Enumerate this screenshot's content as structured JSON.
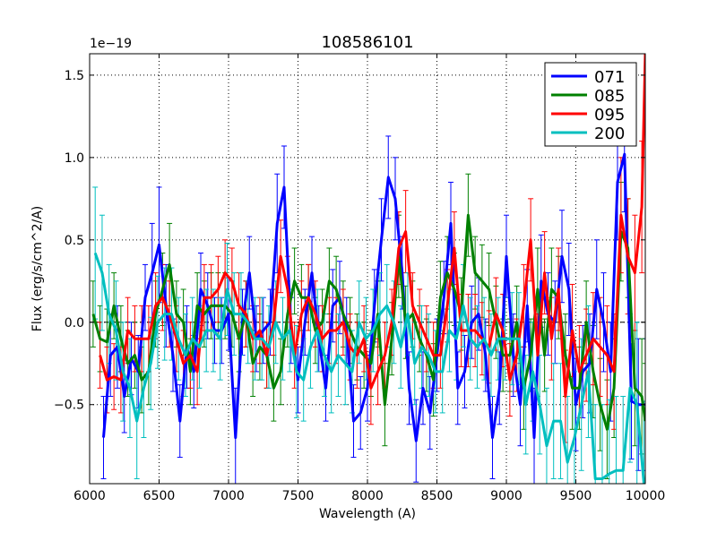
{
  "chart_data": {
    "type": "line",
    "title": "108586101",
    "xlabel": "Wavelength (A)",
    "ylabel": "Flux (erg/s/cm^2/A)",
    "offset_label": "1e−19",
    "xlim": [
      6000,
      10000
    ],
    "ylim": [
      -0.98,
      1.63
    ],
    "xticks": [
      6000,
      6500,
      7000,
      7500,
      8000,
      8500,
      9000,
      9500,
      10000
    ],
    "yticks": [
      -0.5,
      0.0,
      0.5,
      1.0,
      1.5
    ],
    "xtick_labels": [
      "6000",
      "6500",
      "7000",
      "7500",
      "8000",
      "8500",
      "9000",
      "9500",
      "10000"
    ],
    "ytick_labels": [
      "−0.5",
      "0.0",
      "0.5",
      "1.0",
      "1.5"
    ],
    "grid": true,
    "legend_position": "top-right",
    "zero_line": true,
    "series": [
      {
        "name": "071",
        "color": "#0000ff",
        "x": [
          6100,
          6150,
          6200,
          6250,
          6300,
          6350,
          6400,
          6450,
          6500,
          6550,
          6600,
          6650,
          6700,
          6750,
          6800,
          6850,
          6900,
          6950,
          7000,
          7050,
          7100,
          7150,
          7200,
          7250,
          7300,
          7350,
          7400,
          7450,
          7500,
          7550,
          7600,
          7650,
          7700,
          7750,
          7800,
          7850,
          7900,
          7950,
          8000,
          8050,
          8100,
          8150,
          8200,
          8250,
          8300,
          8350,
          8400,
          8450,
          8500,
          8550,
          8600,
          8650,
          8700,
          8750,
          8800,
          8850,
          8900,
          8950,
          9000,
          9050,
          9100,
          9150,
          9200,
          9250,
          9300,
          9350,
          9400,
          9450,
          9500,
          9550,
          9600,
          9650,
          9700,
          9750,
          9800,
          9850,
          9900,
          9950,
          10000
        ],
        "y": [
          -0.7,
          -0.2,
          -0.15,
          -0.45,
          -0.22,
          -0.3,
          0.15,
          0.3,
          0.47,
          0.1,
          -0.2,
          -0.6,
          -0.15,
          -0.3,
          0.2,
          0.1,
          -0.05,
          -0.05,
          0.05,
          -0.7,
          0.0,
          0.3,
          -0.1,
          -0.05,
          0.0,
          0.6,
          0.82,
          -0.05,
          -0.35,
          0.0,
          0.3,
          -0.1,
          -0.4,
          0.1,
          0.15,
          -0.05,
          -0.6,
          -0.55,
          -0.4,
          0.1,
          0.5,
          0.88,
          0.75,
          0.3,
          -0.4,
          -0.72,
          -0.4,
          -0.55,
          -0.2,
          0.15,
          0.6,
          -0.4,
          -0.3,
          0.0,
          0.05,
          -0.2,
          -0.7,
          -0.4,
          0.4,
          -0.2,
          -0.5,
          0.1,
          -0.7,
          0.25,
          0.05,
          0.0,
          0.4,
          0.2,
          -0.5,
          -0.3,
          -0.25,
          0.2,
          0.0,
          -0.3,
          0.85,
          1.02,
          -0.48,
          -0.5,
          -0.5
        ],
        "err": [
          0.25,
          0.25,
          0.25,
          0.22,
          0.22,
          0.22,
          0.2,
          0.3,
          0.35,
          0.25,
          0.22,
          0.22,
          0.25,
          0.22,
          0.22,
          0.2,
          0.2,
          0.2,
          0.22,
          0.3,
          0.2,
          0.22,
          0.2,
          0.2,
          0.2,
          0.3,
          0.25,
          0.2,
          0.2,
          0.2,
          0.22,
          0.2,
          0.2,
          0.22,
          0.22,
          0.2,
          0.22,
          0.22,
          0.2,
          0.22,
          0.25,
          0.25,
          0.25,
          0.22,
          0.22,
          0.25,
          0.22,
          0.22,
          0.22,
          0.22,
          0.25,
          0.22,
          0.22,
          0.22,
          0.22,
          0.22,
          0.25,
          0.22,
          0.25,
          0.25,
          0.25,
          0.22,
          0.3,
          0.28,
          0.25,
          0.25,
          0.28,
          0.28,
          0.28,
          0.28,
          0.3,
          0.3,
          0.3,
          0.3,
          0.35,
          0.35,
          0.35,
          0.4,
          0.4
        ]
      },
      {
        "name": "085",
        "color": "#008000",
        "x": [
          6025,
          6075,
          6125,
          6175,
          6225,
          6275,
          6325,
          6375,
          6425,
          6475,
          6525,
          6575,
          6625,
          6675,
          6725,
          6775,
          6825,
          6875,
          6925,
          6975,
          7025,
          7075,
          7125,
          7175,
          7225,
          7275,
          7325,
          7375,
          7425,
          7475,
          7525,
          7575,
          7625,
          7675,
          7725,
          7775,
          7825,
          7875,
          7925,
          7975,
          8025,
          8075,
          8125,
          8175,
          8225,
          8275,
          8325,
          8375,
          8425,
          8475,
          8525,
          8575,
          8625,
          8675,
          8725,
          8775,
          8825,
          8875,
          8925,
          8975,
          9025,
          9075,
          9125,
          9175,
          9225,
          9275,
          9325,
          9375,
          9425,
          9475,
          9525,
          9575,
          9625,
          9675,
          9725,
          9775,
          9825,
          9875,
          9925,
          9975,
          10000
        ],
        "y": [
          0.05,
          -0.1,
          -0.12,
          0.1,
          -0.1,
          -0.25,
          -0.2,
          -0.35,
          -0.3,
          0.05,
          0.2,
          0.35,
          0.05,
          0.0,
          -0.3,
          0.1,
          0.05,
          0.1,
          0.1,
          0.1,
          0.05,
          -0.1,
          0.05,
          -0.25,
          -0.15,
          -0.2,
          -0.4,
          -0.3,
          0.05,
          0.25,
          0.15,
          0.15,
          -0.05,
          0.0,
          0.25,
          0.2,
          0.05,
          -0.05,
          -0.15,
          -0.2,
          -0.25,
          0.05,
          -0.5,
          -0.1,
          0.4,
          0.0,
          0.05,
          -0.1,
          -0.2,
          -0.35,
          0.15,
          0.3,
          0.2,
          0.05,
          0.65,
          0.3,
          0.25,
          0.2,
          0.0,
          -0.2,
          -0.2,
          0.0,
          -0.4,
          -0.2,
          0.2,
          -0.2,
          0.2,
          0.15,
          -0.2,
          -0.4,
          -0.4,
          0.0,
          -0.3,
          -0.5,
          -0.65,
          -0.4,
          0.55,
          0.45,
          -0.4,
          -0.45,
          -0.6
        ],
        "err": [
          0.2,
          0.2,
          0.2,
          0.2,
          0.2,
          0.2,
          0.2,
          0.2,
          0.2,
          0.2,
          0.22,
          0.25,
          0.2,
          0.2,
          0.2,
          0.2,
          0.2,
          0.2,
          0.2,
          0.2,
          0.2,
          0.2,
          0.2,
          0.2,
          0.2,
          0.2,
          0.2,
          0.2,
          0.2,
          0.2,
          0.2,
          0.2,
          0.2,
          0.2,
          0.2,
          0.2,
          0.2,
          0.2,
          0.2,
          0.2,
          0.2,
          0.2,
          0.25,
          0.22,
          0.25,
          0.22,
          0.2,
          0.2,
          0.22,
          0.22,
          0.22,
          0.22,
          0.22,
          0.22,
          0.25,
          0.22,
          0.22,
          0.22,
          0.22,
          0.22,
          0.22,
          0.22,
          0.25,
          0.22,
          0.25,
          0.22,
          0.25,
          0.25,
          0.25,
          0.25,
          0.25,
          0.25,
          0.28,
          0.28,
          0.3,
          0.3,
          0.3,
          0.3,
          0.35,
          0.35,
          0.35
        ]
      },
      {
        "name": "095",
        "color": "#ff0000",
        "x": [
          6075,
          6125,
          6175,
          6225,
          6275,
          6325,
          6375,
          6425,
          6475,
          6525,
          6575,
          6625,
          6675,
          6725,
          6775,
          6825,
          6875,
          6925,
          6975,
          7025,
          7075,
          7125,
          7175,
          7225,
          7275,
          7325,
          7375,
          7425,
          7475,
          7525,
          7575,
          7625,
          7675,
          7725,
          7775,
          7825,
          7875,
          7925,
          7975,
          8025,
          8075,
          8125,
          8175,
          8225,
          8275,
          8325,
          8375,
          8425,
          8475,
          8525,
          8575,
          8625,
          8675,
          8725,
          8775,
          8825,
          8875,
          8925,
          8975,
          9025,
          9075,
          9125,
          9175,
          9225,
          9275,
          9325,
          9375,
          9425,
          9475,
          9525,
          9575,
          9625,
          9675,
          9725,
          9775,
          9825,
          9875,
          9925,
          9975,
          10000
        ],
        "y": [
          -0.2,
          -0.35,
          -0.33,
          -0.35,
          -0.05,
          -0.1,
          -0.1,
          -0.1,
          0.1,
          0.15,
          0.05,
          -0.1,
          -0.25,
          -0.2,
          -0.3,
          0.15,
          0.15,
          0.2,
          0.3,
          0.25,
          0.1,
          0.05,
          -0.1,
          -0.05,
          -0.2,
          0.0,
          0.4,
          0.2,
          -0.2,
          0.05,
          0.15,
          0.05,
          -0.1,
          -0.05,
          -0.05,
          0.0,
          -0.15,
          -0.2,
          -0.1,
          -0.4,
          -0.3,
          -0.2,
          0.0,
          0.45,
          0.55,
          0.1,
          0.0,
          -0.1,
          -0.2,
          -0.2,
          0.1,
          0.45,
          -0.05,
          -0.05,
          -0.05,
          -0.1,
          -0.15,
          0.05,
          -0.05,
          -0.35,
          -0.2,
          0.1,
          0.5,
          -0.2,
          0.3,
          -0.1,
          0.2,
          -0.45,
          -0.05,
          -0.3,
          -0.2,
          -0.1,
          -0.15,
          -0.2,
          -0.3,
          0.65,
          0.4,
          0.3,
          0.7,
          1.63
        ],
        "err": [
          0.2,
          0.2,
          0.2,
          0.2,
          0.2,
          0.2,
          0.2,
          0.2,
          0.2,
          0.2,
          0.2,
          0.2,
          0.2,
          0.2,
          0.2,
          0.2,
          0.2,
          0.2,
          0.2,
          0.2,
          0.2,
          0.2,
          0.2,
          0.2,
          0.2,
          0.2,
          0.22,
          0.2,
          0.2,
          0.2,
          0.2,
          0.2,
          0.2,
          0.2,
          0.2,
          0.2,
          0.2,
          0.2,
          0.2,
          0.22,
          0.2,
          0.2,
          0.2,
          0.22,
          0.25,
          0.2,
          0.2,
          0.2,
          0.2,
          0.2,
          0.22,
          0.22,
          0.22,
          0.22,
          0.22,
          0.22,
          0.22,
          0.22,
          0.22,
          0.22,
          0.22,
          0.25,
          0.25,
          0.25,
          0.25,
          0.25,
          0.25,
          0.28,
          0.28,
          0.28,
          0.28,
          0.28,
          0.3,
          0.3,
          0.35,
          0.35,
          0.35,
          0.35,
          0.4,
          0.4
        ]
      },
      {
        "name": "200",
        "color": "#00bfbf",
        "x": [
          6040,
          6090,
          6140,
          6190,
          6240,
          6290,
          6340,
          6390,
          6440,
          6490,
          6540,
          6590,
          6640,
          6690,
          6740,
          6790,
          6840,
          6890,
          6940,
          6990,
          7040,
          7090,
          7140,
          7190,
          7240,
          7290,
          7340,
          7390,
          7440,
          7490,
          7540,
          7590,
          7640,
          7690,
          7740,
          7790,
          7840,
          7890,
          7940,
          7990,
          8040,
          8090,
          8140,
          8190,
          8240,
          8290,
          8340,
          8390,
          8440,
          8490,
          8540,
          8590,
          8640,
          8690,
          8740,
          8790,
          8840,
          8890,
          8940,
          8990,
          9040,
          9090,
          9140,
          9190,
          9240,
          9290,
          9340,
          9390,
          9440,
          9490,
          9540,
          9590,
          9640,
          9690,
          9740,
          9790,
          9840,
          9890,
          9940,
          9990
        ],
        "y": [
          0.42,
          0.3,
          0.05,
          -0.05,
          -0.3,
          -0.4,
          -0.6,
          -0.4,
          -0.25,
          0.0,
          0.05,
          0.05,
          -0.1,
          -0.2,
          -0.1,
          -0.15,
          -0.05,
          -0.05,
          -0.1,
          0.2,
          0.05,
          0.05,
          0.0,
          -0.1,
          -0.1,
          -0.15,
          0.0,
          -0.1,
          -0.05,
          -0.3,
          -0.35,
          -0.15,
          -0.05,
          -0.2,
          -0.3,
          -0.2,
          -0.25,
          -0.3,
          0.0,
          -0.1,
          -0.05,
          0.05,
          0.1,
          0.0,
          -0.15,
          0.05,
          -0.25,
          -0.15,
          -0.2,
          -0.3,
          -0.3,
          -0.05,
          -0.1,
          0.1,
          -0.1,
          -0.15,
          -0.1,
          -0.2,
          -0.1,
          -0.1,
          -0.1,
          -0.1,
          -0.5,
          -0.3,
          -0.5,
          -0.75,
          -0.6,
          -0.6,
          -0.85,
          -0.7,
          -0.5,
          -0.3,
          -0.95,
          -0.95,
          -0.92,
          -0.9,
          -0.9,
          -0.4,
          -0.5,
          -0.98
        ],
        "err": [
          0.4,
          0.35,
          0.3,
          0.3,
          0.3,
          0.3,
          0.35,
          0.3,
          0.28,
          0.28,
          0.28,
          0.28,
          0.25,
          0.25,
          0.25,
          0.25,
          0.25,
          0.25,
          0.25,
          0.28,
          0.25,
          0.25,
          0.25,
          0.25,
          0.25,
          0.25,
          0.25,
          0.25,
          0.25,
          0.28,
          0.25,
          0.25,
          0.25,
          0.25,
          0.25,
          0.25,
          0.25,
          0.25,
          0.25,
          0.25,
          0.25,
          0.25,
          0.25,
          0.25,
          0.25,
          0.25,
          0.25,
          0.25,
          0.25,
          0.25,
          0.25,
          0.25,
          0.25,
          0.25,
          0.25,
          0.25,
          0.25,
          0.25,
          0.25,
          0.25,
          0.28,
          0.28,
          0.3,
          0.3,
          0.3,
          0.35,
          0.35,
          0.35,
          0.4,
          0.4,
          0.4,
          0.4,
          0.45,
          0.45,
          0.45,
          0.45,
          0.45,
          0.45,
          0.5,
          0.5
        ]
      }
    ]
  }
}
